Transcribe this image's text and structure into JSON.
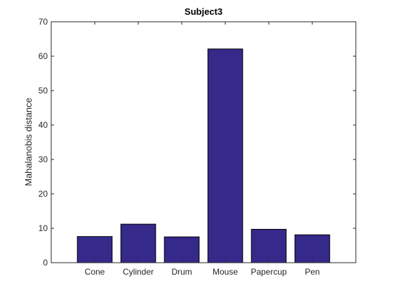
{
  "chart_data": {
    "type": "bar",
    "title": "Subject3",
    "xlabel": "",
    "ylabel": "Mahalanobis distance",
    "categories": [
      "Cone",
      "Cylinder",
      "Drum",
      "Mouse",
      "Papercup",
      "Pen"
    ],
    "values": [
      7.6,
      11.2,
      7.5,
      62.1,
      9.7,
      8.1
    ],
    "ylim": [
      0,
      70
    ],
    "yticks": [
      0,
      10,
      20,
      30,
      40,
      50,
      60,
      70
    ],
    "ytick_labels": [
      "0",
      "10",
      "20",
      "30",
      "40",
      "50",
      "60",
      "70"
    ],
    "grid": false,
    "legend": "none",
    "bar_color": "#35298a",
    "bar_edge_color": "#000000",
    "axis_color": "#262626"
  }
}
